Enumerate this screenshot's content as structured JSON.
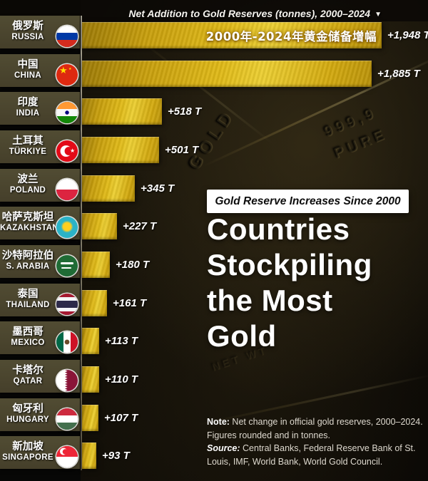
{
  "header": {
    "title": "Net Addition to Gold Reserves (tonnes), 2000–2024",
    "dropdown_icon": "▼"
  },
  "overlay": {
    "badge": "Gold Reserve Increases Since 2000",
    "heading_lines": [
      "Countries",
      "Stockpiling",
      "the Most",
      "Gold"
    ]
  },
  "notes": {
    "note_label": "Note:",
    "note_text": " Net change in official gold reserves, 2000–2024. Figures rounded and in tonnes.",
    "source_label": "Source:",
    "source_text": " Central Banks, Federal Reserve Bank of St. Louis, IMF, World Bank, World Gold Council."
  },
  "background": {
    "embossed_fineness": "999,9",
    "embossed_pure": "PURE",
    "embossed_gold": "GOLD",
    "embossed_netwt": "NET WT"
  },
  "colors": {
    "bar_gold": "#d9b117",
    "bar_gold_light": "#eccf33",
    "bar_gold_dark": "#9c7a07",
    "band_olive": "#4a4630",
    "background": "#12100a",
    "badge_bg": "#ffffff",
    "text_white": "#ffffff",
    "note_text": "#ded9cf"
  },
  "chart_data": {
    "type": "bar",
    "orientation": "horizontal",
    "title": "Net Addition to Gold Reserves (tonnes), 2000–2024",
    "unit": "tonnes (T)",
    "xlim": [
      0,
      1948
    ],
    "legend": "none",
    "categories": [
      "RUSSIA",
      "CHINA",
      "INDIA",
      "TÜRKIYE",
      "POLAND",
      "KAZAKHSTAN",
      "S. ARABIA",
      "THAILAND",
      "MEXICO",
      "QATAR",
      "HUNGARY",
      "SINGAPORE"
    ],
    "values": [
      1948,
      1885,
      518,
      501,
      345,
      227,
      180,
      161,
      113,
      110,
      107,
      93
    ],
    "rows": [
      {
        "name_zh": "俄罗斯",
        "name_en": "RUSSIA",
        "value": 1948,
        "label": "+1,948 T",
        "flag": "russia",
        "bar_overlay": "2000年-2024年黄金储备增幅"
      },
      {
        "name_zh": "中国",
        "name_en": "CHINA",
        "value": 1885,
        "label": "+1,885 T",
        "flag": "china"
      },
      {
        "name_zh": "印度",
        "name_en": "INDIA",
        "value": 518,
        "label": "+518 T",
        "flag": "india"
      },
      {
        "name_zh": "土耳其",
        "name_en": "TÜRKIYE",
        "value": 501,
        "label": "+501 T",
        "flag": "turkiye"
      },
      {
        "name_zh": "波兰",
        "name_en": "POLAND",
        "value": 345,
        "label": "+345 T",
        "flag": "poland"
      },
      {
        "name_zh": "哈萨克斯坦",
        "name_en": "KAZAKHSTAN",
        "value": 227,
        "label": "+227 T",
        "flag": "kazakhstan"
      },
      {
        "name_zh": "沙特阿拉伯",
        "name_en": "S. ARABIA",
        "value": 180,
        "label": "+180 T",
        "flag": "saudi"
      },
      {
        "name_zh": "泰国",
        "name_en": "THAILAND",
        "value": 161,
        "label": "+161 T",
        "flag": "thailand"
      },
      {
        "name_zh": "墨西哥",
        "name_en": "MEXICO",
        "value": 113,
        "label": "+113 T",
        "flag": "mexico"
      },
      {
        "name_zh": "卡塔尔",
        "name_en": "QATAR",
        "value": 110,
        "label": "+110 T",
        "flag": "qatar"
      },
      {
        "name_zh": "匈牙利",
        "name_en": "HUNGARY",
        "value": 107,
        "label": "+107 T",
        "flag": "hungary"
      },
      {
        "name_zh": "新加坡",
        "name_en": "SINGAPORE",
        "value": 93,
        "label": "+93 T",
        "flag": "singapore"
      }
    ]
  }
}
